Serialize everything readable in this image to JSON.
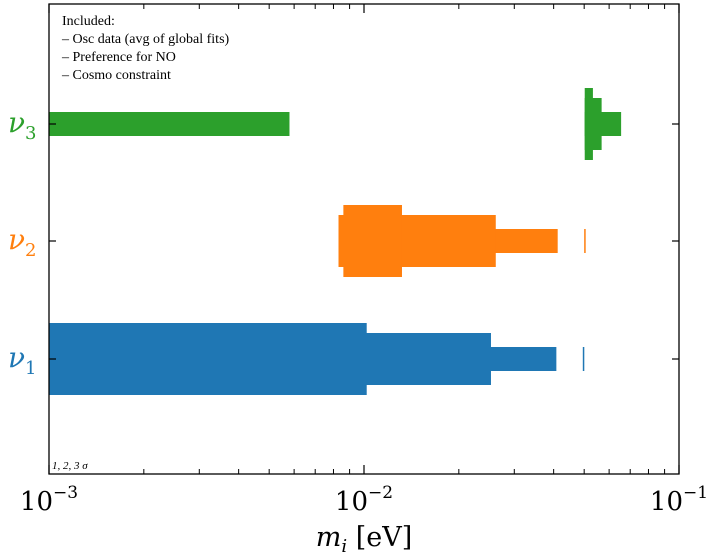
{
  "chart_data": {
    "type": "bar",
    "orientation": "horizontal",
    "x_scale": "log",
    "xlim": [
      0.001,
      0.1
    ],
    "xlabel": {
      "base": "m",
      "sub": "i",
      "unit": "[eV]"
    },
    "xticks": [
      {
        "value": 0.001,
        "base": "10",
        "exp": "−3"
      },
      {
        "value": 0.01,
        "base": "10",
        "exp": "−2"
      },
      {
        "value": 0.1,
        "base": "10",
        "exp": "−1"
      }
    ],
    "annotation_lines": [
      "Included:",
      "– Osc data (avg of global fits)",
      "– Preference for NO",
      "– Cosmo constraint"
    ],
    "sigma_note": "1, 2, 3 σ",
    "grid": false,
    "series": [
      {
        "name": "ν1",
        "sym": "ν",
        "sub": "1",
        "color": "#1f77b4",
        "bands": [
          {
            "sigma": 1,
            "x0": 0.001,
            "x1": 0.0102
          },
          {
            "sigma": 2,
            "x0": 0.001,
            "x1": 0.0253
          },
          {
            "sigma": 3,
            "x0": 0.001,
            "x1": 0.0408
          },
          {
            "sigma": 3,
            "x0": 0.0495,
            "x1": 0.0499
          }
        ]
      },
      {
        "name": "ν2",
        "sym": "ν",
        "sub": "2",
        "color": "#ff7f0e",
        "bands": [
          {
            "sigma": 1,
            "x0": 0.0086,
            "x1": 0.0132
          },
          {
            "sigma": 2,
            "x0": 0.0083,
            "x1": 0.0262
          },
          {
            "sigma": 3,
            "x0": 0.0083,
            "x1": 0.0412
          },
          {
            "sigma": 3,
            "x0": 0.05,
            "x1": 0.0504
          }
        ]
      },
      {
        "name": "ν3",
        "sym": "ν",
        "sub": "3",
        "color": "#2ca02c",
        "bands": [
          {
            "sigma": 1,
            "x0": 0.0502,
            "x1": 0.0533
          },
          {
            "sigma": 2,
            "x0": 0.0502,
            "x1": 0.0568
          },
          {
            "sigma": 3,
            "x0": 0.001,
            "x1": 0.0058
          },
          {
            "sigma": 3,
            "x0": 0.0502,
            "x1": 0.0655
          }
        ]
      }
    ]
  }
}
